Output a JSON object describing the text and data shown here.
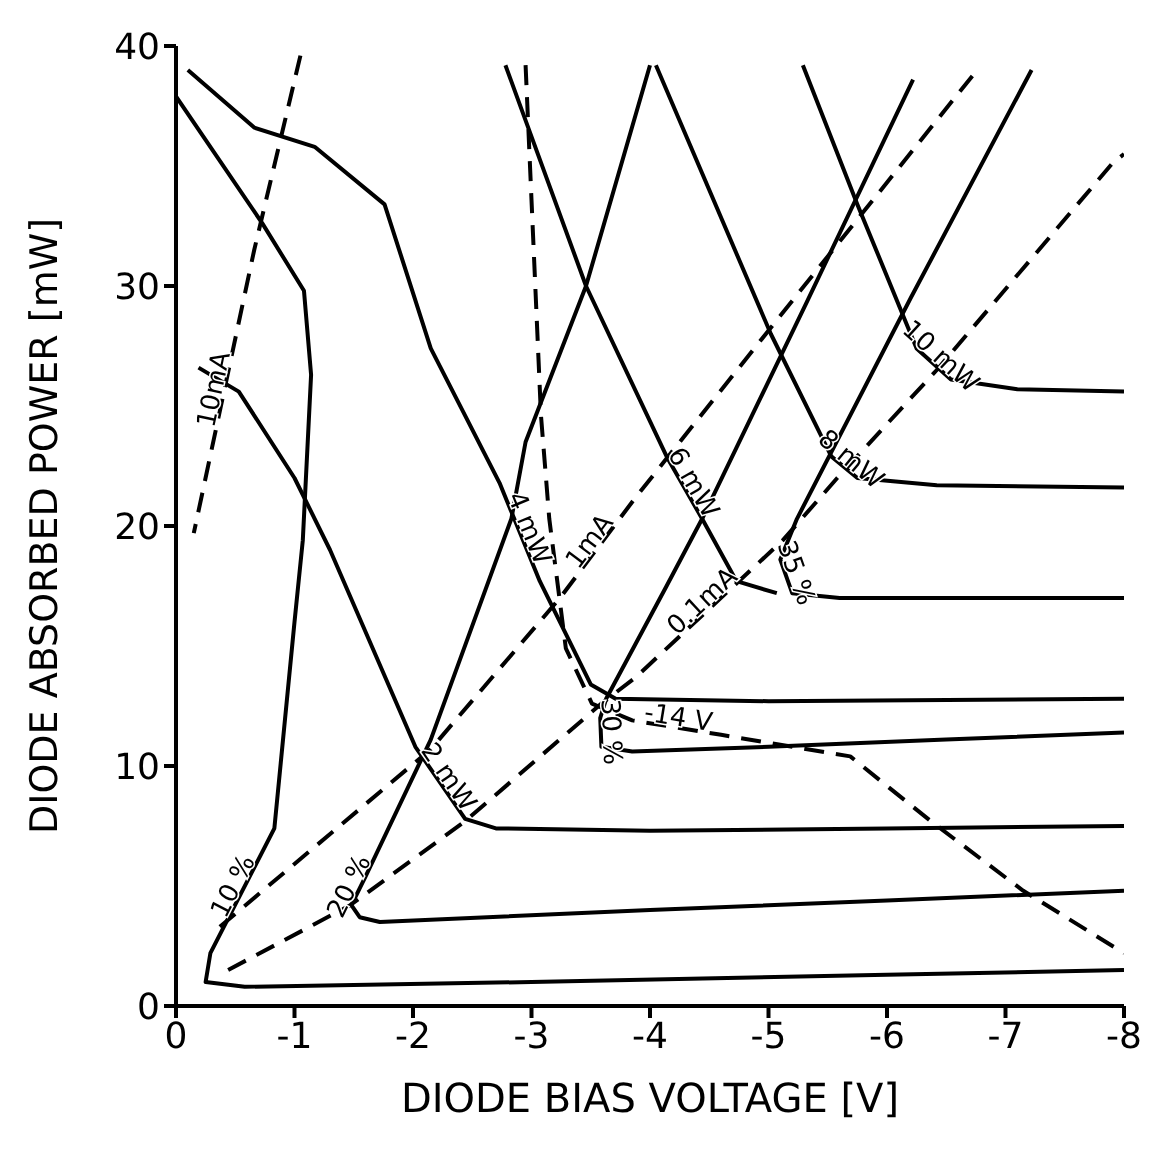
{
  "chart_data": {
    "type": "line",
    "xlabel": "DIODE BIAS VOLTAGE [V]",
    "ylabel": "DIODE ABSORBED POWER [mW]",
    "xlim": [
      0,
      -8
    ],
    "xticks": [
      0,
      -1,
      -2,
      -3,
      -4,
      -5,
      -6,
      -7,
      -8
    ],
    "ylim": [
      0,
      40
    ],
    "yticks": [
      0,
      10,
      20,
      30,
      40
    ],
    "series": [
      {
        "name": "10 %",
        "color": "#000000",
        "line_style": "solid",
        "x": [
          0,
          -0.73,
          -1.08,
          -1.14,
          -1.07,
          -1.0,
          -0.83,
          -0.29,
          -0.25,
          -0.58,
          -3,
          -6,
          -8
        ],
        "values": [
          37.9,
          32.6,
          29.8,
          26.3,
          19.4,
          16,
          7.4,
          2.2,
          1.0,
          0.8,
          1.0,
          1.3,
          1.5
        ]
      },
      {
        "name": "20 %",
        "color": "#000000",
        "line_style": "solid",
        "x": [
          -4.0,
          -3.46,
          -2.95,
          -2.83,
          -2.15,
          -1.6,
          -1.48,
          -1.55,
          -1.72,
          -4,
          -6,
          -8
        ],
        "values": [
          39.2,
          30.0,
          23.5,
          20.3,
          11.1,
          5.4,
          4.2,
          3.7,
          3.5,
          4.0,
          4.4,
          4.8
        ]
      },
      {
        "name": "30 %",
        "color": "#000000",
        "line_style": "solid",
        "x": [
          -6.22,
          -5.32,
          -4.44,
          -4.14,
          -3.63,
          -3.58,
          -3.59,
          -3.85,
          -5,
          -6.5,
          -8
        ],
        "values": [
          38.6,
          29.3,
          20.3,
          17.5,
          12.8,
          12.0,
          10.8,
          10.6,
          10.8,
          11.1,
          11.4
        ]
      },
      {
        "name": "35 %",
        "color": "#000000",
        "line_style": "solid",
        "x": [
          -7.22,
          -6.2,
          -5.24,
          -5.1,
          -5.2,
          -5.6,
          -6.5,
          -8
        ],
        "values": [
          39.0,
          29.5,
          20.3,
          18.6,
          17.2,
          17.0,
          17.0,
          17.0
        ]
      },
      {
        "name": "2 mW",
        "color": "#000000",
        "line_style": "solid",
        "x": [
          -0.19,
          -0.53,
          -1.0,
          -1.3,
          -2.02,
          -2.44,
          -2.7,
          -4,
          -6,
          -8
        ],
        "values": [
          26.6,
          25.6,
          22.0,
          19.0,
          10.8,
          7.8,
          7.4,
          7.3,
          7.4,
          7.5
        ]
      },
      {
        "name": "4 mW",
        "color": "#000000",
        "line_style": "solid",
        "x": [
          -0.1,
          -0.66,
          -1.17,
          -1.76,
          -2.15,
          -2.73,
          -3.07,
          -3.5,
          -3.71,
          -5,
          -8
        ],
        "values": [
          39.0,
          36.6,
          35.8,
          33.4,
          27.4,
          21.8,
          17.7,
          13.4,
          12.8,
          12.7,
          12.8
        ]
      },
      {
        "name": "6 mW",
        "color": "#000000",
        "line_style": "solid",
        "x": [
          -2.78,
          -3.46,
          -4.14,
          -4.44,
          -4.73,
          -5.07
        ],
        "values": [
          39.2,
          30.0,
          22.9,
          20.3,
          17.7,
          17.2
        ]
      },
      {
        "name": "8 mW",
        "color": "#000000",
        "line_style": "solid",
        "x": [
          -4.05,
          -5.02,
          -5.53,
          -5.75,
          -6.42,
          -8
        ],
        "values": [
          39.2,
          28.0,
          22.9,
          22.0,
          21.7,
          21.6
        ]
      },
      {
        "name": "10 mW",
        "color": "#000000",
        "line_style": "solid",
        "x": [
          -5.29,
          -5.75,
          -6.25,
          -6.54,
          -7.1,
          -8
        ],
        "values": [
          39.2,
          33.4,
          27.4,
          26.1,
          25.7,
          25.6
        ]
      },
      {
        "name": "10mA",
        "color": "#000000",
        "line_style": "dashed",
        "x": [
          -1.05,
          -0.66,
          -0.15
        ],
        "values": [
          39.6,
          31.5,
          19.7
        ]
      },
      {
        "name": "1mA",
        "color": "#000000",
        "line_style": "dashed",
        "x": [
          -0.37,
          -2.15,
          -3.24,
          -3.88,
          -5.3,
          -6.76
        ],
        "values": [
          3.3,
          10.7,
          17.0,
          21.2,
          30.0,
          39.0
        ]
      },
      {
        "name": "0.1mA",
        "color": "#000000",
        "line_style": "dashed",
        "x": [
          -0.44,
          -1.47,
          -2.44,
          -3.59,
          -3.88,
          -5.12,
          -5.58,
          -6.42,
          -7.9,
          -8
        ],
        "values": [
          1.5,
          4.2,
          7.7,
          12.6,
          13.7,
          19.4,
          22.0,
          26.5,
          35.1,
          35.5
        ]
      },
      {
        "name": "-14 V",
        "color": "#000000",
        "line_style": "dashed",
        "x": [
          -2.95,
          -3.08,
          -3.15,
          -3.29,
          -3.51,
          -3.85,
          -4.6,
          -5.69,
          -6.37,
          -7.15,
          -8
        ],
        "values": [
          39.2,
          24.6,
          20.3,
          14.9,
          12.6,
          11.9,
          11.3,
          10.4,
          7.7,
          4.8,
          2.2
        ]
      }
    ]
  }
}
